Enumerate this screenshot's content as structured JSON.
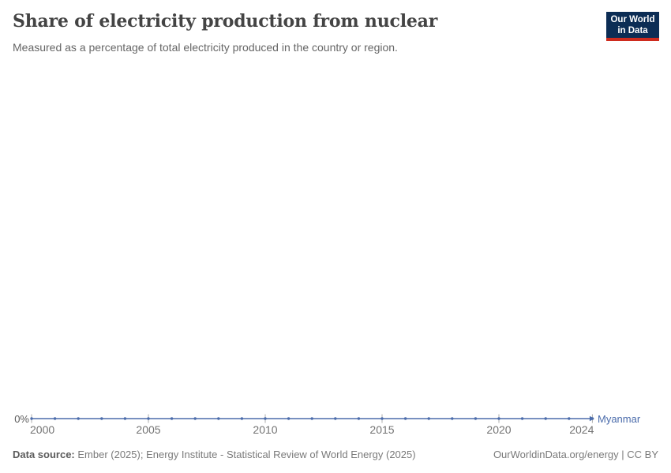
{
  "header": {
    "title": "Share of electricity production from nuclear",
    "subtitle": "Measured as a percentage of total electricity produced in the country or region.",
    "logo": {
      "line1": "Our World",
      "line2": "in Data",
      "bg_color": "#0C2D55",
      "stripe_color": "#CE2B1E"
    }
  },
  "chart_data": {
    "type": "line",
    "title": "Share of electricity production from nuclear",
    "subtitle": "Measured as a percentage of total electricity produced in the country or region.",
    "xlabel": "",
    "ylabel": "",
    "x": [
      2000,
      2001,
      2002,
      2003,
      2004,
      2005,
      2006,
      2007,
      2008,
      2009,
      2010,
      2011,
      2012,
      2013,
      2014,
      2015,
      2016,
      2017,
      2018,
      2019,
      2020,
      2021,
      2022,
      2023,
      2024
    ],
    "series": [
      {
        "name": "Myanmar",
        "color": "#4B6CAB",
        "values": [
          0,
          0,
          0,
          0,
          0,
          0,
          0,
          0,
          0,
          0,
          0,
          0,
          0,
          0,
          0,
          0,
          0,
          0,
          0,
          0,
          0,
          0,
          0,
          0,
          0
        ]
      }
    ],
    "xticks": [
      2000,
      2005,
      2010,
      2015,
      2020,
      2024
    ],
    "yticks": [
      {
        "label": "0%",
        "value": 0
      }
    ],
    "xlim": [
      2000,
      2024
    ],
    "ylim": [
      0,
      0
    ],
    "grid": false,
    "legend_position": "end-of-line-label",
    "tick_color": "#ADADAD"
  },
  "footer": {
    "datasource_label": "Data source:",
    "datasource_text": " Ember (2025); Energy Institute - Statistical Review of World Energy (2025)",
    "right_text": "OurWorldinData.org/energy | CC BY"
  }
}
